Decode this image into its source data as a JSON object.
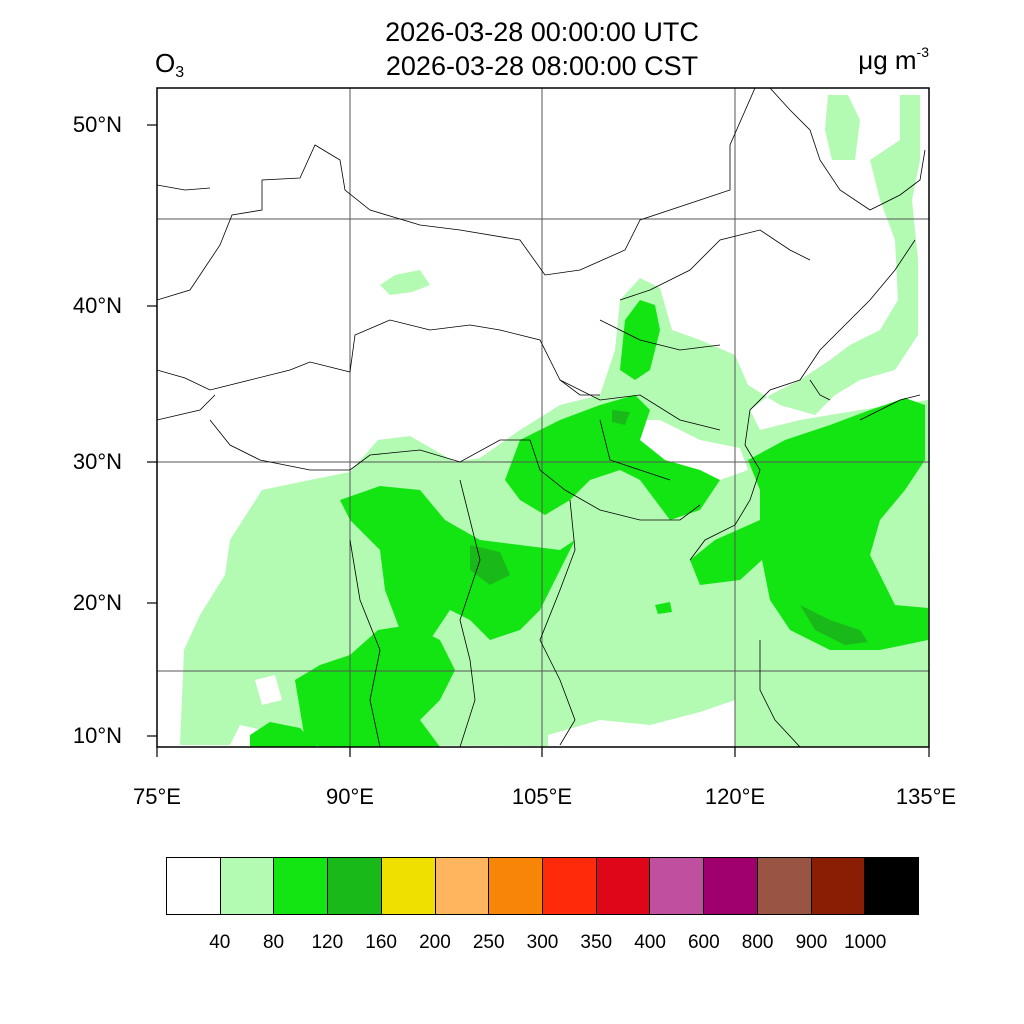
{
  "header": {
    "title_utc": "2026-03-28 00:00:00 UTC",
    "title_cst": "2026-03-28 08:00:00 CST",
    "species_main": "O",
    "species_sub": "3",
    "units_main": "μg m",
    "units_sup": "-3"
  },
  "map": {
    "lat_labels": [
      "50°N",
      "40°N",
      "30°N",
      "20°N",
      "10°N"
    ],
    "lon_labels": [
      "75°E",
      "90°E",
      "105°E",
      "120°E",
      "135°E"
    ],
    "field_colors": {
      "level_40_80": "#b3fab3",
      "level_80_120": "#13e513",
      "level_120_160": "#1ab91a"
    }
  },
  "legend": {
    "colors": [
      "#ffffff",
      "#b3fab3",
      "#13e513",
      "#1ab91a",
      "#f0e000",
      "#ffb55e",
      "#f68508",
      "#ff2a0a",
      "#de0618",
      "#bf4f9f",
      "#a0006e",
      "#9a5444",
      "#8a1e05",
      "#000000"
    ],
    "labels": [
      "40",
      "80",
      "120",
      "160",
      "200",
      "250",
      "300",
      "350",
      "400",
      "600",
      "800",
      "900",
      "1000"
    ]
  }
}
